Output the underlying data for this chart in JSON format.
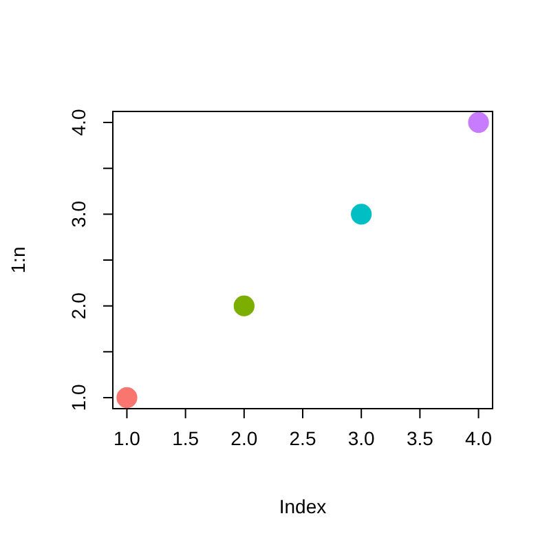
{
  "chart_data": {
    "type": "scatter",
    "xlabel": "Index",
    "ylabel": "1:n",
    "x": [
      1,
      2,
      3,
      4
    ],
    "values": [
      1,
      2,
      3,
      4
    ],
    "colors": [
      "#f8766d",
      "#7cae00",
      "#00bfc4",
      "#c77cff"
    ],
    "marker": "circle",
    "xlim": [
      0.88,
      4.12
    ],
    "ylim": [
      0.88,
      4.12
    ],
    "xticks": [
      {
        "value": 1,
        "label": "1.0"
      },
      {
        "value": 1.5,
        "label": "1.5"
      },
      {
        "value": 2,
        "label": "2.0"
      },
      {
        "value": 2.5,
        "label": "2.5"
      },
      {
        "value": 3,
        "label": "3.0"
      },
      {
        "value": 3.5,
        "label": "3.5"
      },
      {
        "value": 4,
        "label": "4.0"
      }
    ],
    "yticks": [
      {
        "value": 1,
        "label": "1.0"
      },
      {
        "value": 1.5,
        "label": null
      },
      {
        "value": 2,
        "label": "2.0"
      },
      {
        "value": 2.5,
        "label": null
      },
      {
        "value": 3,
        "label": "3.0"
      },
      {
        "value": 3.5,
        "label": null
      },
      {
        "value": 4,
        "label": "4.0"
      }
    ]
  }
}
